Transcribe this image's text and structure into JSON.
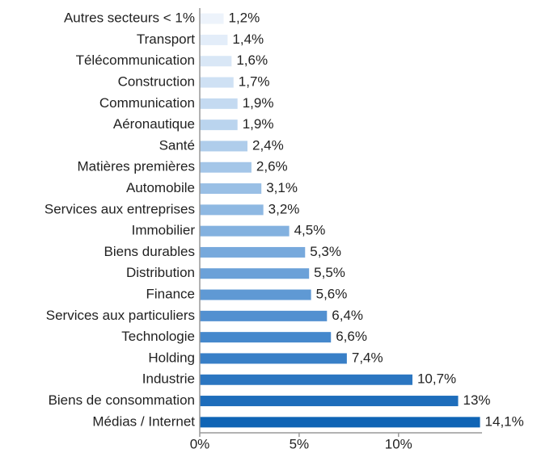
{
  "chart_data": {
    "type": "bar",
    "orientation": "horizontal",
    "categories": [
      "Autres secteurs < 1%",
      "Transport",
      "Télécommunication",
      "Construction",
      "Communication",
      "Aéronautique",
      "Santé",
      "Matières premières",
      "Automobile",
      "Services aux entreprises",
      "Immobilier",
      "Biens durables",
      "Distribution",
      "Finance",
      "Services aux particuliers",
      "Technologie",
      "Holding",
      "Industrie",
      "Biens de consommation",
      "Médias / Internet"
    ],
    "values": [
      1.2,
      1.4,
      1.6,
      1.7,
      1.9,
      1.9,
      2.4,
      2.6,
      3.1,
      3.2,
      4.5,
      5.3,
      5.5,
      5.6,
      6.4,
      6.6,
      7.4,
      10.7,
      13,
      14.1
    ],
    "value_labels": [
      "1,2%",
      "1,4%",
      "1,6%",
      "1,7%",
      "1,9%",
      "1,9%",
      "2,4%",
      "2,6%",
      "3,1%",
      "3,2%",
      "4,5%",
      "5,3%",
      "5,5%",
      "5,6%",
      "6,4%",
      "6,6%",
      "7,4%",
      "10,7%",
      "13%",
      "14,1%"
    ],
    "colors": [
      "#edf3fb",
      "#e3edf9",
      "#d9e7f6",
      "#cfe1f4",
      "#c4daf1",
      "#bad4ee",
      "#afcdeb",
      "#a4c6e8",
      "#99bfe5",
      "#8eb8e2",
      "#83b1df",
      "#77a9dc",
      "#6ba1d8",
      "#5f99d4",
      "#5290d0",
      "#4588cc",
      "#387fc7",
      "#2b76c1",
      "#1e6dbb",
      "#0f64b5"
    ],
    "xlim": [
      0,
      14.2
    ],
    "xticks": [
      {
        "value": 0,
        "label": "0%"
      },
      {
        "value": 5,
        "label": "5%"
      },
      {
        "value": 10,
        "label": "10%"
      }
    ]
  }
}
